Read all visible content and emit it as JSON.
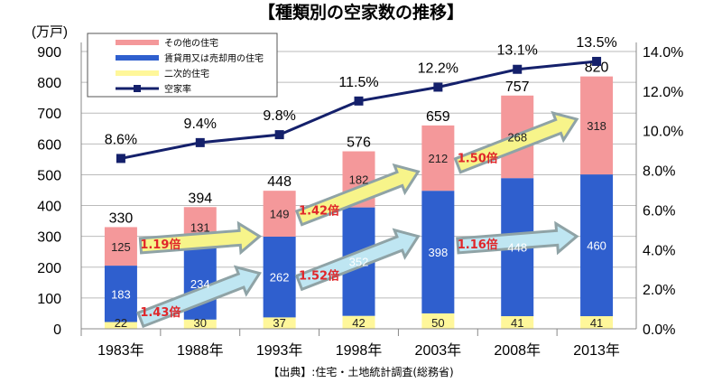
{
  "chart_data": {
    "type": "bar",
    "title": "【種類別の空家数の推移】",
    "ylabel": "(万戸)",
    "source": "【出典】:住宅・土地統計調査(総務省)",
    "categories": [
      "1983年",
      "1988年",
      "1993年",
      "1998年",
      "2003年",
      "2008年",
      "2013年"
    ],
    "ylim": [
      0,
      900
    ],
    "y_ticks": [
      "0",
      "100",
      "200",
      "300",
      "400",
      "500",
      "600",
      "700",
      "800",
      "900"
    ],
    "y2lim": [
      0,
      14
    ],
    "y2_ticks": [
      "0.0%",
      "2.0%",
      "4.0%",
      "6.0%",
      "8.0%",
      "10.0%",
      "12.0%",
      "14.0%"
    ],
    "grid": true,
    "legend_placement": "top-left",
    "series": [
      {
        "name": "二次的住宅",
        "color": "#fff79a",
        "values": [
          22,
          30,
          37,
          42,
          50,
          41,
          41
        ]
      },
      {
        "name": "賃貸用又は売却用の住宅",
        "color": "#2f5fce",
        "values": [
          183,
          234,
          262,
          352,
          398,
          448,
          460
        ]
      },
      {
        "name": "その他の住宅",
        "color": "#f4989a",
        "values": [
          125,
          131,
          149,
          182,
          212,
          268,
          318
        ]
      }
    ],
    "totals": [
      "330",
      "394",
      "448",
      "576",
      "659",
      "757",
      "820"
    ],
    "line": {
      "name": "空家率",
      "color": "#14206b",
      "values": [
        8.6,
        9.4,
        9.8,
        11.5,
        12.2,
        13.1,
        13.5
      ],
      "labels": [
        "8.6%",
        "9.4%",
        "9.8%",
        "11.5%",
        "12.2%",
        "13.1%",
        "13.5%"
      ]
    },
    "annotations": [
      {
        "label": "1.19倍",
        "from": 0,
        "to": 2,
        "y_from": 270,
        "y_to": 300,
        "fill": "#f7f48a"
      },
      {
        "label": "1.42倍",
        "from": 2,
        "to": 4,
        "y_from": 360,
        "y_to": 510,
        "fill": "#f7f48a"
      },
      {
        "label": "1.50倍",
        "from": 4,
        "to": 6,
        "y_from": 530,
        "y_to": 680,
        "fill": "#f7f48a"
      },
      {
        "label": "1.43倍",
        "from": 0,
        "to": 2,
        "y_from": 30,
        "y_to": 180,
        "fill": "#bfe6f2"
      },
      {
        "label": "1.52倍",
        "from": 2,
        "to": 4,
        "y_from": 150,
        "y_to": 300,
        "fill": "#bfe6f2"
      },
      {
        "label": "1.16倍",
        "from": 4,
        "to": 6,
        "y_from": 270,
        "y_to": 300,
        "fill": "#bfe6f2"
      }
    ]
  }
}
